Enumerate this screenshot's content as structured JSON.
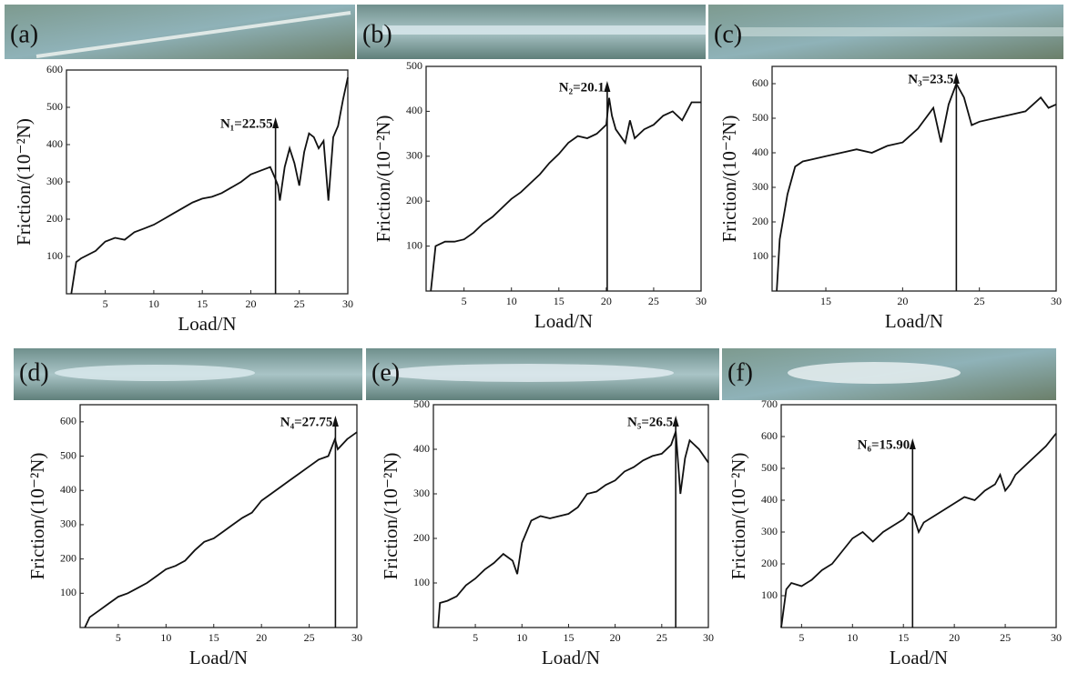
{
  "chart_data": [
    {
      "type": "line",
      "label": "(a)",
      "xlabel": "Load/N",
      "ylabel": "Friction/(10⁻²N)",
      "color": "#111111",
      "xlim": [
        1,
        30
      ],
      "xticks": [
        5,
        10,
        15,
        20,
        25,
        30
      ],
      "ylim": [
        0,
        600
      ],
      "yticks": [
        100,
        200,
        300,
        400,
        500,
        600
      ],
      "annotation": {
        "text": "N₁=22.55",
        "x": 22.55
      },
      "x": [
        1.5,
        2,
        2.5,
        4,
        5,
        6,
        7,
        8,
        9,
        10,
        11,
        12,
        13,
        14,
        15,
        16,
        17,
        18,
        19,
        20,
        21,
        22,
        22.5,
        22.8,
        23,
        23.5,
        24,
        24.5,
        25,
        25.5,
        26,
        26.5,
        27,
        27.5,
        28,
        28.5,
        29,
        29.5,
        30
      ],
      "values": [
        0,
        85,
        95,
        115,
        140,
        150,
        145,
        165,
        175,
        185,
        200,
        215,
        230,
        245,
        255,
        260,
        270,
        285,
        300,
        320,
        330,
        340,
        310,
        290,
        250,
        340,
        390,
        350,
        290,
        380,
        430,
        420,
        390,
        410,
        250,
        420,
        450,
        520,
        580
      ]
    },
    {
      "type": "line",
      "label": "(b)",
      "xlabel": "Load/N",
      "ylabel": "Friction/(10⁻²N)",
      "color": "#111111",
      "xlim": [
        1,
        30
      ],
      "xticks": [
        5,
        10,
        15,
        20,
        25,
        30
      ],
      "ylim": [
        0,
        500
      ],
      "yticks": [
        100,
        200,
        300,
        400,
        500
      ],
      "annotation": {
        "text": "N₂=20.1",
        "x": 20.1
      },
      "x": [
        1.5,
        2,
        3,
        4,
        5,
        6,
        7,
        8,
        9,
        10,
        11,
        12,
        13,
        14,
        15,
        16,
        17,
        18,
        19,
        20,
        20.3,
        20.6,
        21,
        22,
        22.5,
        23,
        24,
        25,
        26,
        27,
        28,
        29,
        30
      ],
      "values": [
        0,
        100,
        110,
        110,
        115,
        130,
        150,
        165,
        185,
        205,
        220,
        240,
        260,
        285,
        305,
        330,
        345,
        340,
        350,
        370,
        430,
        390,
        360,
        330,
        380,
        340,
        360,
        370,
        390,
        400,
        380,
        420,
        420
      ]
    },
    {
      "type": "line",
      "label": "(c)",
      "xlabel": "Load/N",
      "ylabel": "Friction/(10⁻²N)",
      "color": "#111111",
      "xlim": [
        11.5,
        30
      ],
      "xticks": [
        15,
        20,
        25,
        30
      ],
      "ylim": [
        0,
        650
      ],
      "yticks": [
        100,
        200,
        300,
        400,
        500,
        600
      ],
      "annotation": {
        "text": "N₃=23.5",
        "x": 23.5
      },
      "x": [
        11.8,
        12,
        12.5,
        13,
        13.5,
        14,
        15,
        16,
        17,
        18,
        19,
        20,
        21,
        22,
        22.5,
        23,
        23.5,
        24,
        24.5,
        25,
        26,
        27,
        28,
        29,
        29.5,
        30
      ],
      "values": [
        0,
        150,
        280,
        360,
        375,
        380,
        390,
        400,
        410,
        400,
        420,
        430,
        470,
        530,
        430,
        540,
        600,
        560,
        480,
        490,
        500,
        510,
        520,
        560,
        530,
        540
      ]
    },
    {
      "type": "line",
      "label": "(d)",
      "xlabel": "Load/N",
      "ylabel": "Friction/(10⁻²N)",
      "color": "#111111",
      "xlim": [
        1,
        30
      ],
      "xticks": [
        5,
        10,
        15,
        20,
        25,
        30
      ],
      "ylim": [
        0,
        650
      ],
      "yticks": [
        100,
        200,
        300,
        400,
        500,
        600
      ],
      "annotation": {
        "text": "N₄=27.75",
        "x": 27.75
      },
      "x": [
        1.5,
        2,
        3,
        4,
        5,
        6,
        7,
        8,
        9,
        10,
        11,
        12,
        13,
        14,
        15,
        16,
        17,
        18,
        19,
        20,
        21,
        22,
        23,
        24,
        25,
        26,
        27,
        27.7,
        28,
        29,
        30
      ],
      "values": [
        0,
        30,
        50,
        70,
        90,
        100,
        115,
        130,
        150,
        170,
        180,
        195,
        225,
        250,
        260,
        280,
        300,
        320,
        335,
        370,
        390,
        410,
        430,
        450,
        470,
        490,
        500,
        550,
        520,
        550,
        570
      ]
    },
    {
      "type": "line",
      "label": "(e)",
      "xlabel": "Load/N",
      "ylabel": "Friction/(10⁻²N)",
      "color": "#111111",
      "xlim": [
        0.5,
        30
      ],
      "xticks": [
        5,
        10,
        15,
        20,
        25,
        30
      ],
      "ylim": [
        0,
        500
      ],
      "yticks": [
        100,
        200,
        300,
        400,
        500
      ],
      "annotation": {
        "text": "N₅=26.5",
        "x": 26.5
      },
      "x": [
        1,
        1.2,
        2,
        3,
        4,
        5,
        6,
        7,
        8,
        9,
        9.5,
        10,
        11,
        12,
        13,
        14,
        15,
        16,
        17,
        18,
        19,
        20,
        21,
        22,
        23,
        24,
        25,
        26,
        26.5,
        27,
        27.5,
        28,
        29,
        30
      ],
      "values": [
        0,
        55,
        60,
        70,
        95,
        110,
        130,
        145,
        165,
        150,
        120,
        190,
        240,
        250,
        245,
        250,
        255,
        270,
        300,
        305,
        320,
        330,
        350,
        360,
        375,
        385,
        390,
        410,
        440,
        300,
        380,
        420,
        400,
        370
      ]
    },
    {
      "type": "line",
      "label": "(f)",
      "xlabel": "Load/N",
      "ylabel": "Friction/(10⁻²N)",
      "color": "#111111",
      "xlim": [
        3,
        30
      ],
      "xticks": [
        5,
        10,
        15,
        20,
        25,
        30
      ],
      "ylim": [
        0,
        700
      ],
      "yticks": [
        100,
        200,
        300,
        400,
        500,
        600,
        700
      ],
      "annotation": {
        "text": "N₆=15.90",
        "x": 15.9
      },
      "x": [
        3,
        3.5,
        4,
        5,
        6,
        7,
        8,
        9,
        10,
        11,
        12,
        13,
        14,
        15,
        15.5,
        16,
        16.5,
        17,
        18,
        19,
        20,
        21,
        22,
        23,
        24,
        24.5,
        25,
        25.5,
        26,
        27,
        28,
        29,
        30
      ],
      "values": [
        0,
        120,
        140,
        130,
        150,
        180,
        200,
        240,
        280,
        300,
        270,
        300,
        320,
        340,
        360,
        350,
        300,
        330,
        350,
        370,
        390,
        410,
        400,
        430,
        450,
        480,
        430,
        450,
        480,
        510,
        540,
        570,
        610
      ]
    }
  ]
}
